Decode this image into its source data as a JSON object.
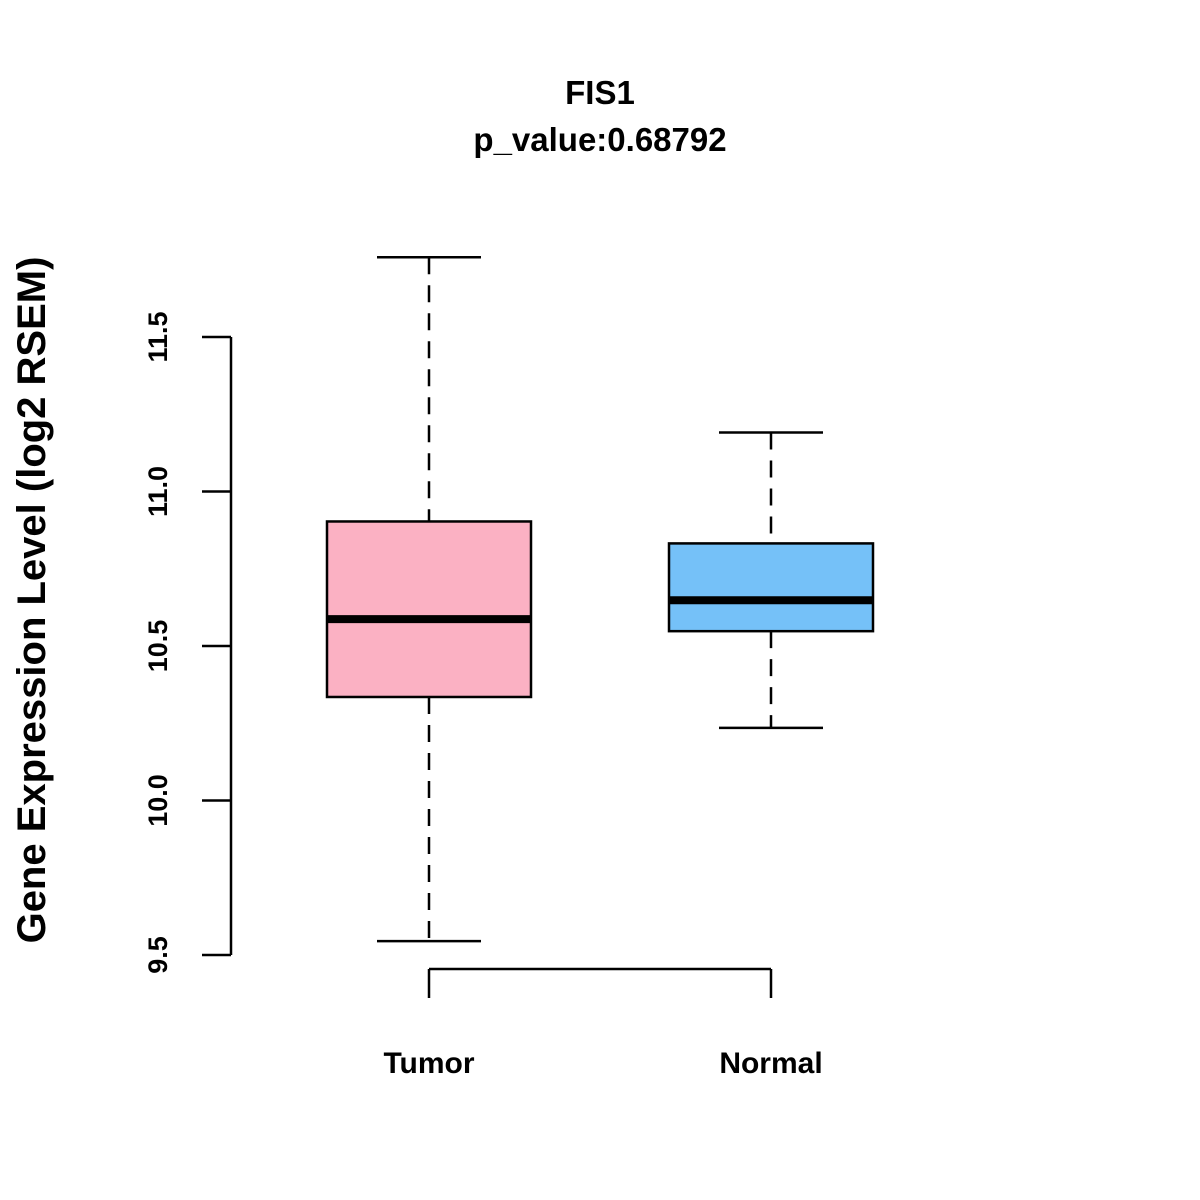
{
  "chart_data": {
    "type": "box",
    "title": "FIS1",
    "subtitle": "p_value:0.68792",
    "xlabel": "",
    "ylabel": "Gene Expression Level (log2 RSEM)",
    "ylim": [
      9.5,
      11.5
    ],
    "yticks": [
      "9.5",
      "10.0",
      "10.5",
      "11.0",
      "11.5"
    ],
    "ytick_values": [
      9.5,
      10.0,
      10.5,
      11.0,
      11.5
    ],
    "categories": [
      "Tumor",
      "Normal"
    ],
    "series": [
      {
        "name": "Tumor",
        "min": 9.545,
        "q1": 10.335,
        "median": 10.587,
        "q3": 10.903,
        "max": 11.758,
        "color": "#FBB1C3"
      },
      {
        "name": "Normal",
        "min": 10.235,
        "q1": 10.548,
        "median": 10.648,
        "q3": 10.832,
        "max": 11.191,
        "color": "#75C1F8"
      }
    ],
    "grid": false,
    "comparison_bracket": [
      "Tumor",
      "Normal"
    ]
  }
}
